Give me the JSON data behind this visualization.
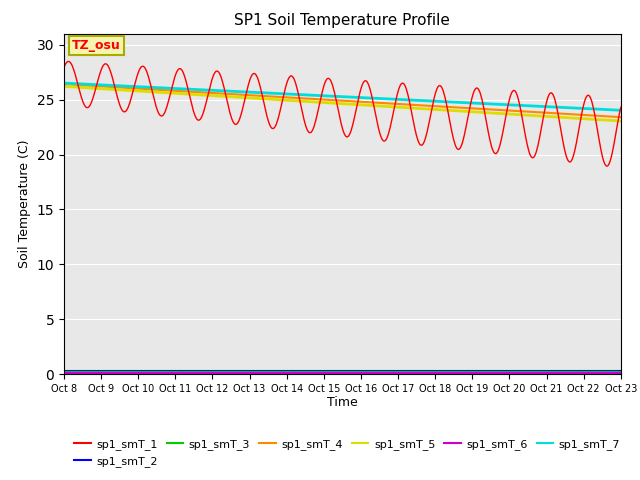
{
  "title": "SP1 Soil Temperature Profile",
  "xlabel": "Time",
  "ylabel": "Soil Temperature (C)",
  "ylim": [
    0,
    31
  ],
  "yticks": [
    0,
    5,
    10,
    15,
    20,
    25,
    30
  ],
  "n_days": 15,
  "x_tick_labels": [
    "Oct 8",
    "Oct 9",
    "Oct 10",
    "Oct 11",
    "Oct 12",
    "Oct 13",
    "Oct 14",
    "Oct 15",
    "Oct 16",
    "Oct 17",
    "Oct 18",
    "Oct 19",
    "Oct 20",
    "Oct 21",
    "Oct 22",
    "Oct 23"
  ],
  "annotation_text": "TZ_osu",
  "annotation_box_color": "#f5f5b0",
  "annotation_border_color": "#aaaa00",
  "colors": {
    "sp1_smT_1": "#ff0000",
    "sp1_smT_2": "#0000ff",
    "sp1_smT_3": "#00cc00",
    "sp1_smT_4": "#ff8800",
    "sp1_smT_5": "#dddd00",
    "sp1_smT_6": "#cc00cc",
    "sp1_smT_7": "#00dddd"
  },
  "bg_color": "#e8e8e8",
  "fig_bg_color": "#ffffff",
  "line_widths": {
    "sp1_smT_1": 1.0,
    "sp1_smT_2": 1.5,
    "sp1_smT_3": 1.5,
    "sp1_smT_4": 1.5,
    "sp1_smT_5": 2.0,
    "sp1_smT_6": 1.5,
    "sp1_smT_7": 2.0
  }
}
